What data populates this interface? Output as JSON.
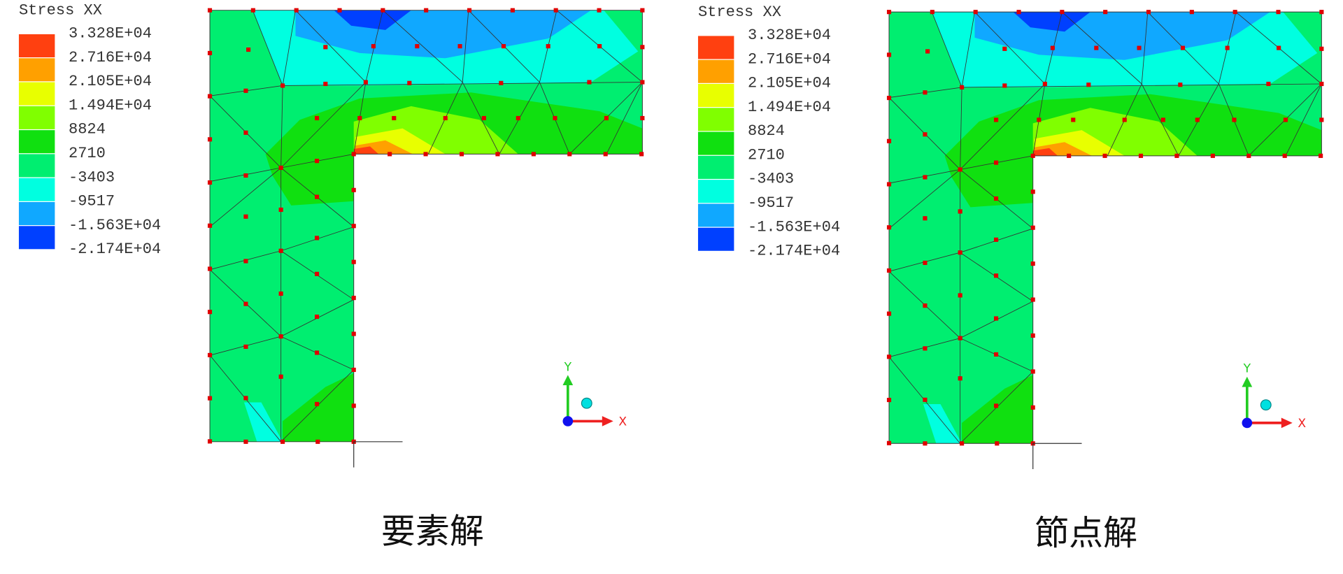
{
  "panels": [
    {
      "legend": {
        "title": "Stress XX",
        "labels": [
          "3.328E+04",
          "2.716E+04",
          "2.105E+04",
          "1.494E+04",
          "8824",
          "2710",
          "-3403",
          "-9517",
          "-1.563E+04",
          "-2.174E+04"
        ],
        "colors": [
          "#ff4010",
          "#ffa000",
          "#e8ff00",
          "#80ff00",
          "#10e010",
          "#00ee70",
          "#00ffe0",
          "#10a8ff",
          "#0040ff"
        ]
      },
      "axes": {
        "y": "Y",
        "x": "X"
      },
      "caption": "要素解"
    },
    {
      "legend": {
        "title": "Stress XX",
        "labels": [
          "3.328E+04",
          "2.716E+04",
          "2.105E+04",
          "1.494E+04",
          "8824",
          "2710",
          "-3403",
          "-9517",
          "-1.563E+04",
          "-2.174E+04"
        ],
        "colors": [
          "#ff4010",
          "#ffa000",
          "#e8ff00",
          "#80ff00",
          "#10e010",
          "#00ee70",
          "#00ffe0",
          "#10a8ff",
          "#0040ff"
        ]
      },
      "axes": {
        "y": "Y",
        "x": "X"
      },
      "caption": "節点解"
    }
  ]
}
